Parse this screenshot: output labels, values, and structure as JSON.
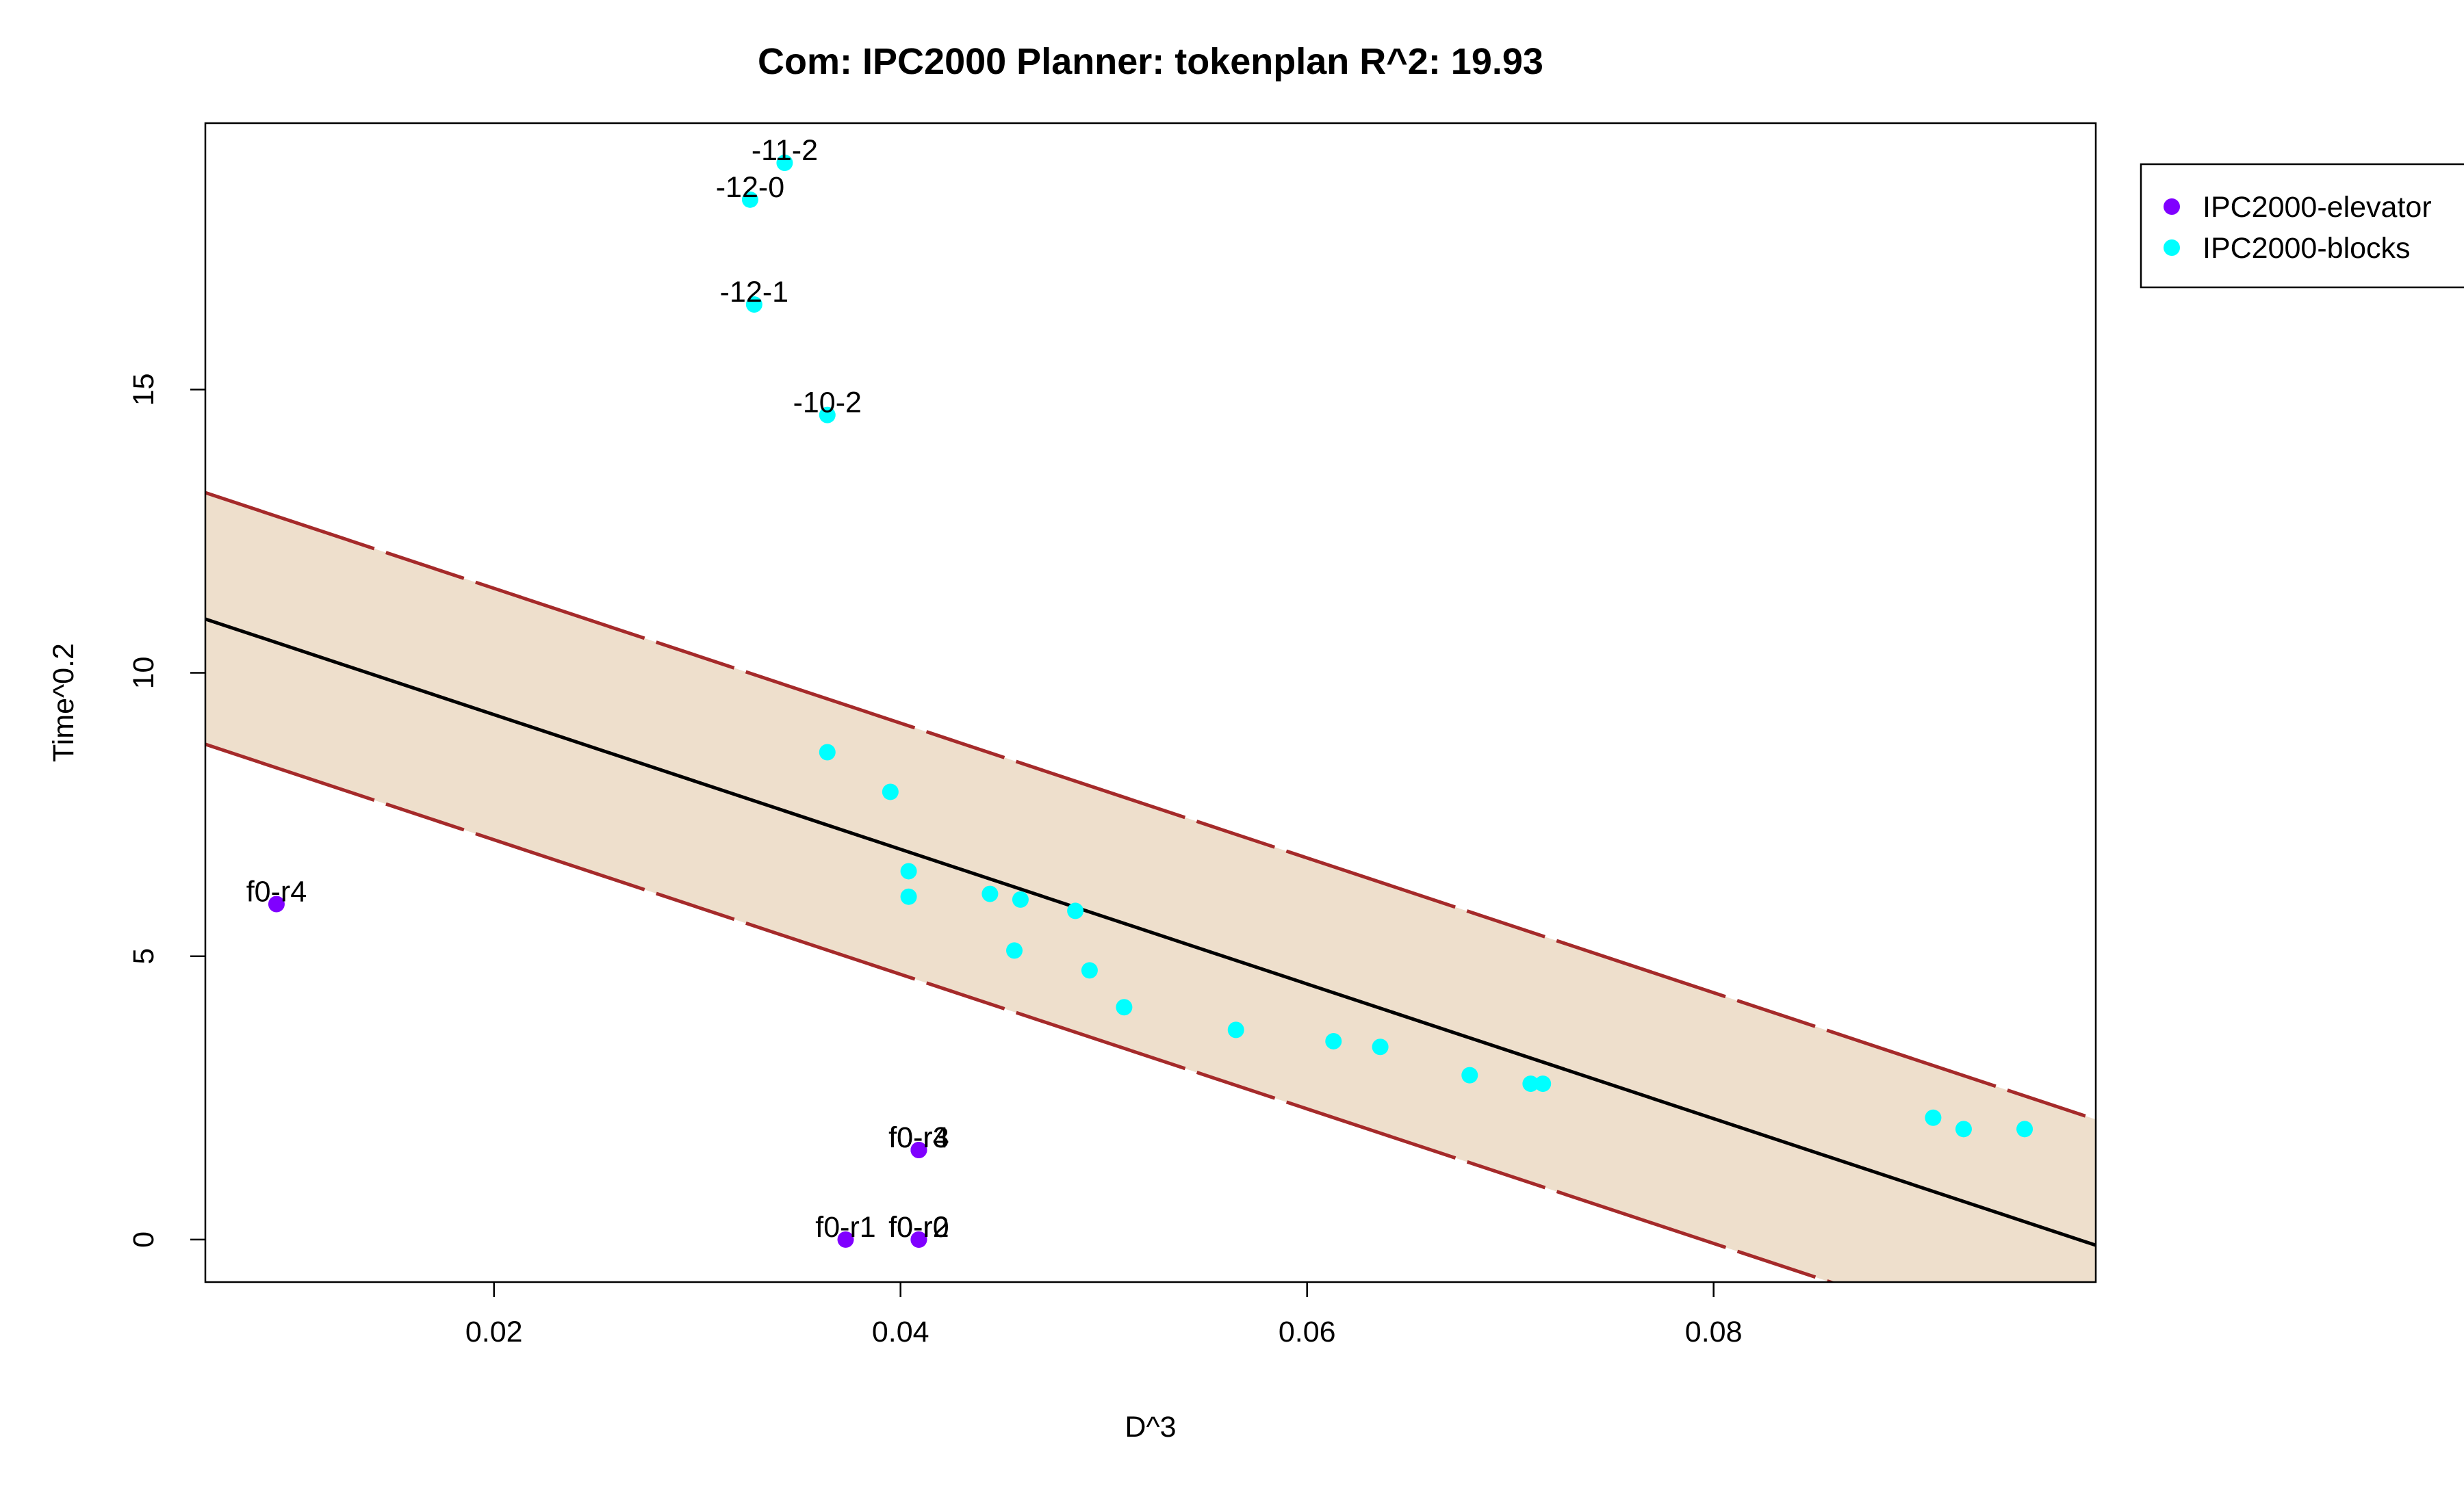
{
  "chart_data": {
    "type": "scatter",
    "title": "Com: IPC2000 Planner: tokenplan R^2: 19.93",
    "xlabel": "D^3",
    "ylabel": "Time^0.2",
    "xlim": [
      0.0058,
      0.0988
    ],
    "ylim": [
      -0.75,
      19.7
    ],
    "x_ticks": [
      0.02,
      0.04,
      0.06,
      0.08
    ],
    "x_tick_labels": [
      "0.02",
      "0.04",
      "0.06",
      "0.08"
    ],
    "y_ticks": [
      0,
      5,
      10,
      15
    ],
    "y_tick_labels": [
      "0",
      "5",
      "10",
      "15"
    ],
    "grid": false,
    "legend_position": "top-right, outside plot",
    "fit_line": {
      "x": [
        0.0058,
        0.0988
      ],
      "y": [
        10.95,
        -0.1
      ],
      "color": "#000000"
    },
    "band_upper": {
      "x": [
        0.0058,
        0.0988
      ],
      "y": [
        13.18,
        2.12
      ],
      "color": "#A52A2A"
    },
    "band_lower": {
      "x": [
        0.0058,
        0.0988
      ],
      "y": [
        8.74,
        -2.3
      ],
      "color": "#A52A2A"
    },
    "band_fill_color": "#EEDFCC",
    "series": [
      {
        "name": "IPC2000-elevator",
        "color": "#8000FF",
        "points": [
          {
            "x": 0.0093,
            "y": 5.92,
            "label": "f0-r4"
          },
          {
            "x": 0.0409,
            "y": 1.58,
            "label": "f0-r3"
          },
          {
            "x": 0.0409,
            "y": 1.58,
            "label": "f0-r4"
          },
          {
            "x": 0.0373,
            "y": 0.0,
            "label": "f0-r1"
          },
          {
            "x": 0.0409,
            "y": 0.0,
            "label": "f0-r0"
          },
          {
            "x": 0.0409,
            "y": 0.0,
            "label": "f0-r2"
          }
        ]
      },
      {
        "name": "IPC2000-blocks",
        "color": "#00FFFF",
        "points": [
          {
            "x": 0.0343,
            "y": 19.0,
            "label": "-11-2"
          },
          {
            "x": 0.0326,
            "y": 18.35,
            "label": "-12-0"
          },
          {
            "x": 0.0328,
            "y": 16.5,
            "label": "-12-1"
          },
          {
            "x": 0.0364,
            "y": 14.55,
            "label": "-10-2"
          },
          {
            "x": 0.0364,
            "y": 8.6,
            "label": ""
          },
          {
            "x": 0.0395,
            "y": 7.9,
            "label": ""
          },
          {
            "x": 0.0404,
            "y": 6.5,
            "label": ""
          },
          {
            "x": 0.0404,
            "y": 6.05,
            "label": ""
          },
          {
            "x": 0.0444,
            "y": 6.1,
            "label": ""
          },
          {
            "x": 0.0459,
            "y": 6.0,
            "label": ""
          },
          {
            "x": 0.0456,
            "y": 5.1,
            "label": ""
          },
          {
            "x": 0.0486,
            "y": 5.8,
            "label": ""
          },
          {
            "x": 0.0493,
            "y": 4.75,
            "label": ""
          },
          {
            "x": 0.051,
            "y": 4.1,
            "label": ""
          },
          {
            "x": 0.0565,
            "y": 3.7,
            "label": ""
          },
          {
            "x": 0.0613,
            "y": 3.5,
            "label": ""
          },
          {
            "x": 0.0636,
            "y": 3.4,
            "label": ""
          },
          {
            "x": 0.068,
            "y": 2.9,
            "label": ""
          },
          {
            "x": 0.071,
            "y": 2.75,
            "label": ""
          },
          {
            "x": 0.0716,
            "y": 2.75,
            "label": ""
          },
          {
            "x": 0.0908,
            "y": 2.15,
            "label": ""
          },
          {
            "x": 0.0923,
            "y": 1.95,
            "label": ""
          },
          {
            "x": 0.0953,
            "y": 1.95,
            "label": ""
          }
        ]
      }
    ]
  }
}
